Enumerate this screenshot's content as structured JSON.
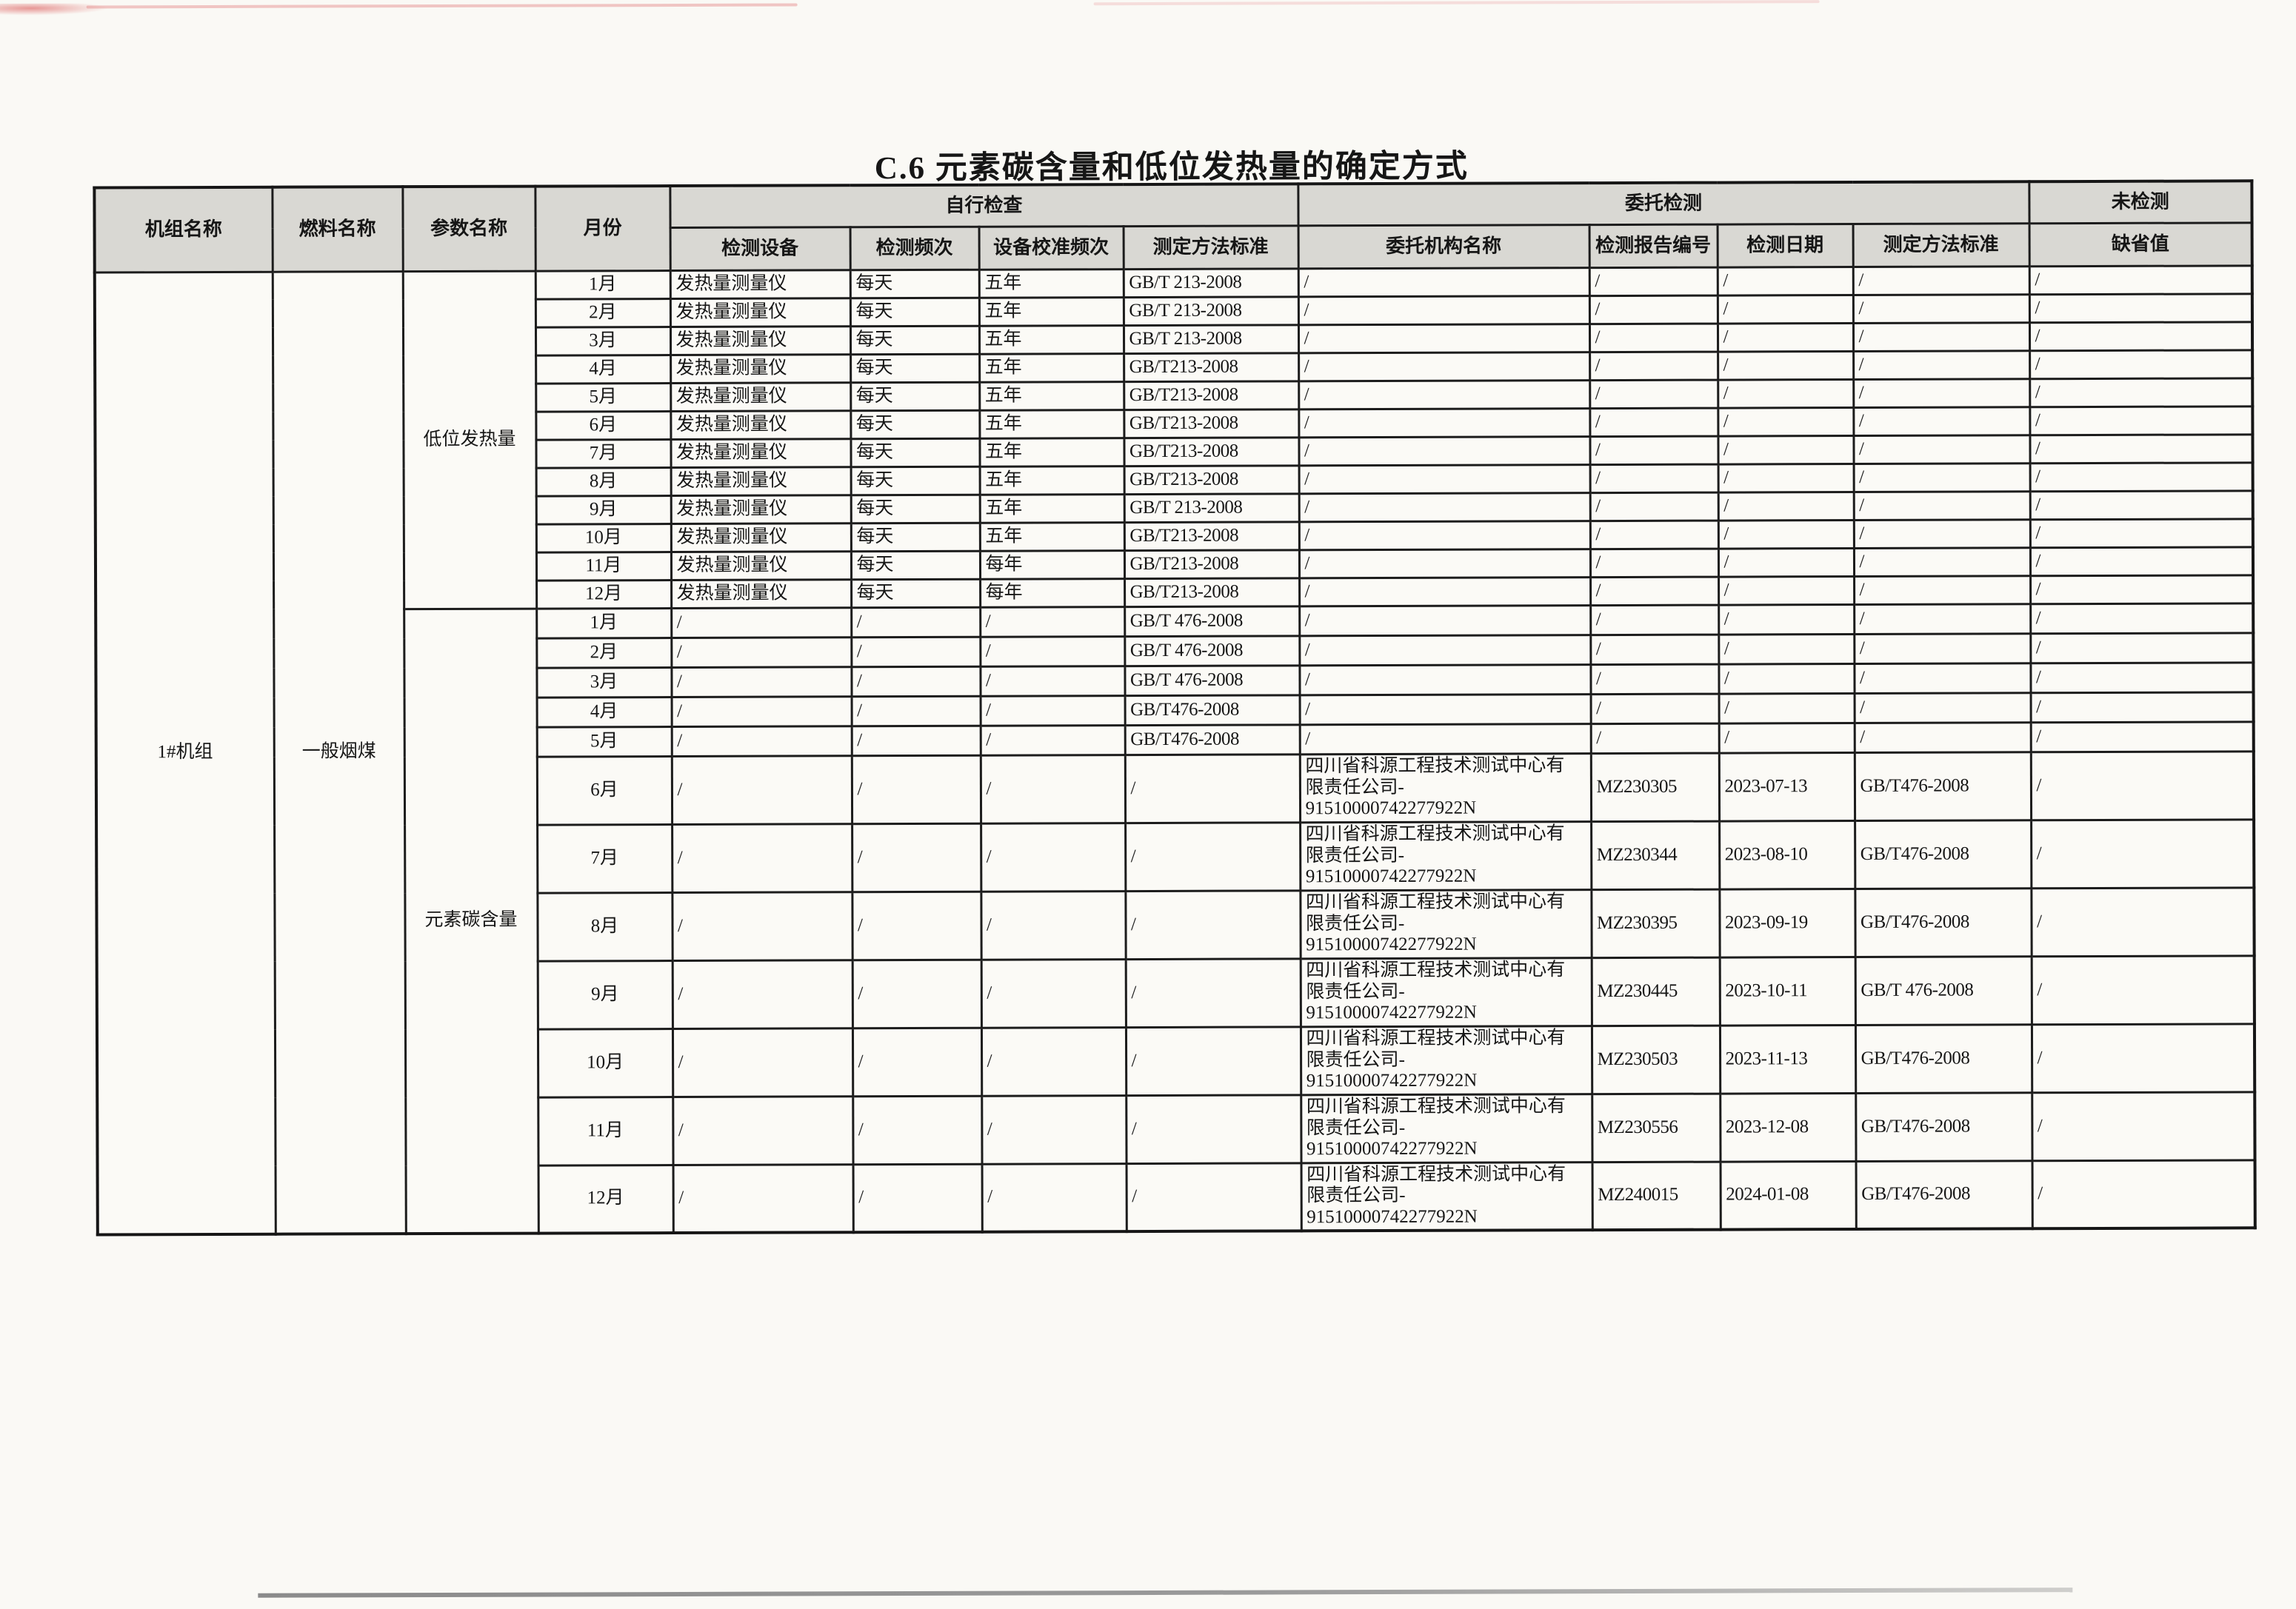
{
  "title": "C.6 元素碳含量和低位发热量的确定方式",
  "table": {
    "headers": {
      "unit": "机组名称",
      "fuel": "燃料名称",
      "param": "参数名称",
      "month": "月份",
      "self_group": "自行检查",
      "self_cols": [
        "检测设备",
        "检测频次",
        "设备校准频次",
        "测定方法标准"
      ],
      "commission_group": "委托检测",
      "commission_cols": [
        "委托机构名称",
        "检测报告编号",
        "检测日期",
        "测定方法标准"
      ],
      "untested_group": "未检测",
      "untested_col": "缺省值"
    },
    "unit_name": "1#机组",
    "fuel_name": "一般烟煤",
    "groups": [
      {
        "param": "低位发热量",
        "rows": [
          {
            "month": "1月",
            "device": "发热量测量仪",
            "freq": "每天",
            "cal": "五年",
            "std": "GB/T 213-2008",
            "org": [
              "/"
            ],
            "report": "/",
            "date": "/",
            "cstd": "/",
            "default": "/"
          },
          {
            "month": "2月",
            "device": "发热量测量仪",
            "freq": "每天",
            "cal": "五年",
            "std": "GB/T 213-2008",
            "org": [
              "/"
            ],
            "report": "/",
            "date": "/",
            "cstd": "/",
            "default": "/"
          },
          {
            "month": "3月",
            "device": "发热量测量仪",
            "freq": "每天",
            "cal": "五年",
            "std": "GB/T 213-2008",
            "org": [
              "/"
            ],
            "report": "/",
            "date": "/",
            "cstd": "/",
            "default": "/"
          },
          {
            "month": "4月",
            "device": "发热量测量仪",
            "freq": "每天",
            "cal": "五年",
            "std": "GB/T213-2008",
            "org": [
              "/"
            ],
            "report": "/",
            "date": "/",
            "cstd": "/",
            "default": "/"
          },
          {
            "month": "5月",
            "device": "发热量测量仪",
            "freq": "每天",
            "cal": "五年",
            "std": "GB/T213-2008",
            "org": [
              "/"
            ],
            "report": "/",
            "date": "/",
            "cstd": "/",
            "default": "/"
          },
          {
            "month": "6月",
            "device": "发热量测量仪",
            "freq": "每天",
            "cal": "五年",
            "std": "GB/T213-2008",
            "org": [
              "/"
            ],
            "report": "/",
            "date": "/",
            "cstd": "/",
            "default": "/"
          },
          {
            "month": "7月",
            "device": "发热量测量仪",
            "freq": "每天",
            "cal": "五年",
            "std": "GB/T213-2008",
            "org": [
              "/"
            ],
            "report": "/",
            "date": "/",
            "cstd": "/",
            "default": "/"
          },
          {
            "month": "8月",
            "device": "发热量测量仪",
            "freq": "每天",
            "cal": "五年",
            "std": "GB/T213-2008",
            "org": [
              "/"
            ],
            "report": "/",
            "date": "/",
            "cstd": "/",
            "default": "/"
          },
          {
            "month": "9月",
            "device": "发热量测量仪",
            "freq": "每天",
            "cal": "五年",
            "std": "GB/T 213-2008",
            "org": [
              "/"
            ],
            "report": "/",
            "date": "/",
            "cstd": "/",
            "default": "/"
          },
          {
            "month": "10月",
            "device": "发热量测量仪",
            "freq": "每天",
            "cal": "五年",
            "std": "GB/T213-2008",
            "org": [
              "/"
            ],
            "report": "/",
            "date": "/",
            "cstd": "/",
            "default": "/"
          },
          {
            "month": "11月",
            "device": "发热量测量仪",
            "freq": "每天",
            "cal": "每年",
            "std": "GB/T213-2008",
            "org": [
              "/"
            ],
            "report": "/",
            "date": "/",
            "cstd": "/",
            "default": "/"
          },
          {
            "month": "12月",
            "device": "发热量测量仪",
            "freq": "每天",
            "cal": "每年",
            "std": "GB/T213-2008",
            "org": [
              "/"
            ],
            "report": "/",
            "date": "/",
            "cstd": "/",
            "default": "/"
          }
        ]
      },
      {
        "param": "元素碳含量",
        "rows": [
          {
            "month": "1月",
            "device": "/",
            "freq": "/",
            "cal": "/",
            "std": "GB/T 476-2008",
            "org": [
              "/"
            ],
            "report": "/",
            "date": "/",
            "cstd": "/",
            "default": "/"
          },
          {
            "month": "2月",
            "device": "/",
            "freq": "/",
            "cal": "/",
            "std": "GB/T 476-2008",
            "org": [
              "/"
            ],
            "report": "/",
            "date": "/",
            "cstd": "/",
            "default": "/"
          },
          {
            "month": "3月",
            "device": "/",
            "freq": "/",
            "cal": "/",
            "std": "GB/T 476-2008",
            "org": [
              "/"
            ],
            "report": "/",
            "date": "/",
            "cstd": "/",
            "default": "/"
          },
          {
            "month": "4月",
            "device": "/",
            "freq": "/",
            "cal": "/",
            "std": "GB/T476-2008",
            "org": [
              "/"
            ],
            "report": "/",
            "date": "/",
            "cstd": "/",
            "default": "/"
          },
          {
            "month": "5月",
            "device": "/",
            "freq": "/",
            "cal": "/",
            "std": "GB/T476-2008",
            "org": [
              "/"
            ],
            "report": "/",
            "date": "/",
            "cstd": "/",
            "default": "/"
          },
          {
            "month": "6月",
            "device": "/",
            "freq": "/",
            "cal": "/",
            "std": "/",
            "org": [
              "四川省科源工程技术测试中心有",
              "限责任公司-",
              "91510000742277922N"
            ],
            "report": "MZ230305",
            "date": "2023-07-13",
            "cstd": "GB/T476-2008",
            "default": "/"
          },
          {
            "month": "7月",
            "device": "/",
            "freq": "/",
            "cal": "/",
            "std": "/",
            "org": [
              "四川省科源工程技术测试中心有",
              "限责任公司-",
              "91510000742277922N"
            ],
            "report": "MZ230344",
            "date": "2023-08-10",
            "cstd": "GB/T476-2008",
            "default": "/"
          },
          {
            "month": "8月",
            "device": "/",
            "freq": "/",
            "cal": "/",
            "std": "/",
            "org": [
              "四川省科源工程技术测试中心有",
              "限责任公司-",
              "91510000742277922N"
            ],
            "report": "MZ230395",
            "date": "2023-09-19",
            "cstd": "GB/T476-2008",
            "default": "/"
          },
          {
            "month": "9月",
            "device": "/",
            "freq": "/",
            "cal": "/",
            "std": "/",
            "org": [
              "四川省科源工程技术测试中心有",
              "限责任公司-",
              "91510000742277922N"
            ],
            "report": "MZ230445",
            "date": "2023-10-11",
            "cstd": "GB/T 476-2008",
            "default": "/"
          },
          {
            "month": "10月",
            "device": "/",
            "freq": "/",
            "cal": "/",
            "std": "/",
            "org": [
              "四川省科源工程技术测试中心有",
              "限责任公司-",
              "91510000742277922N"
            ],
            "report": "MZ230503",
            "date": "2023-11-13",
            "cstd": "GB/T476-2008",
            "default": "/"
          },
          {
            "month": "11月",
            "device": "/",
            "freq": "/",
            "cal": "/",
            "std": "/",
            "org": [
              "四川省科源工程技术测试中心有",
              "限责任公司-",
              "91510000742277922N"
            ],
            "report": "MZ230556",
            "date": "2023-12-08",
            "cstd": "GB/T476-2008",
            "default": "/"
          },
          {
            "month": "12月",
            "device": "/",
            "freq": "/",
            "cal": "/",
            "std": "/",
            "org": [
              "四川省科源工程技术测试中心有",
              "限责任公司-",
              "91510000742277922N"
            ],
            "report": "MZ240015",
            "date": "2024-01-08",
            "cstd": "GB/T476-2008",
            "default": "/"
          }
        ]
      }
    ]
  },
  "colors": {
    "line": "#1c1c1c",
    "header_bg": "#d9d8d3",
    "paper": "#faf9f5",
    "artifact_red": "#e27878",
    "artifact_gray": "#8b8b8b"
  }
}
